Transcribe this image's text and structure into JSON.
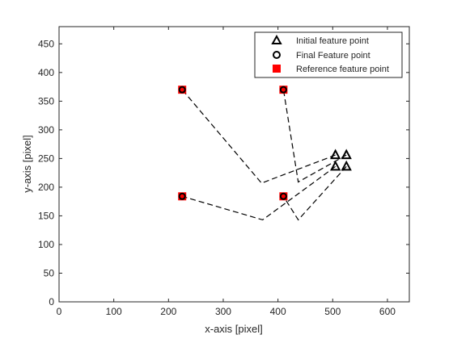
{
  "chart_data": {
    "type": "scatter",
    "title": "",
    "xlabel": "x-axis [pixel]",
    "ylabel": "y-axis [pixel]",
    "xlim": [
      0,
      640
    ],
    "ylim": [
      0,
      480
    ],
    "xticks": [
      0,
      100,
      200,
      300,
      400,
      500,
      600
    ],
    "yticks": [
      0,
      50,
      100,
      150,
      200,
      250,
      300,
      350,
      400,
      450
    ],
    "grid": false,
    "legend_position": "top-right",
    "colors": {
      "axis": "#262626",
      "reference": "#ff0000",
      "marker": "#000000"
    },
    "series": [
      {
        "name": "Initial feature point",
        "marker": "triangle",
        "points": [
          [
            505,
            256
          ],
          [
            525,
            256
          ],
          [
            505,
            236
          ],
          [
            525,
            236
          ]
        ]
      },
      {
        "name": "Final Feature point",
        "marker": "circle",
        "points": [
          [
            225,
            370
          ],
          [
            410,
            370
          ],
          [
            225,
            184
          ],
          [
            410,
            184
          ]
        ]
      },
      {
        "name": "Reference feature point",
        "marker": "square",
        "points": [
          [
            225,
            370
          ],
          [
            410,
            370
          ],
          [
            225,
            184
          ],
          [
            410,
            184
          ]
        ]
      }
    ],
    "trajectories": [
      [
        [
          505,
          256
        ],
        [
          370,
          207
        ],
        [
          225,
          370
        ]
      ],
      [
        [
          525,
          256
        ],
        [
          437,
          209
        ],
        [
          410,
          370
        ]
      ],
      [
        [
          505,
          236
        ],
        [
          372,
          143
        ],
        [
          225,
          184
        ]
      ],
      [
        [
          525,
          236
        ],
        [
          437,
          143
        ],
        [
          410,
          184
        ]
      ]
    ]
  }
}
